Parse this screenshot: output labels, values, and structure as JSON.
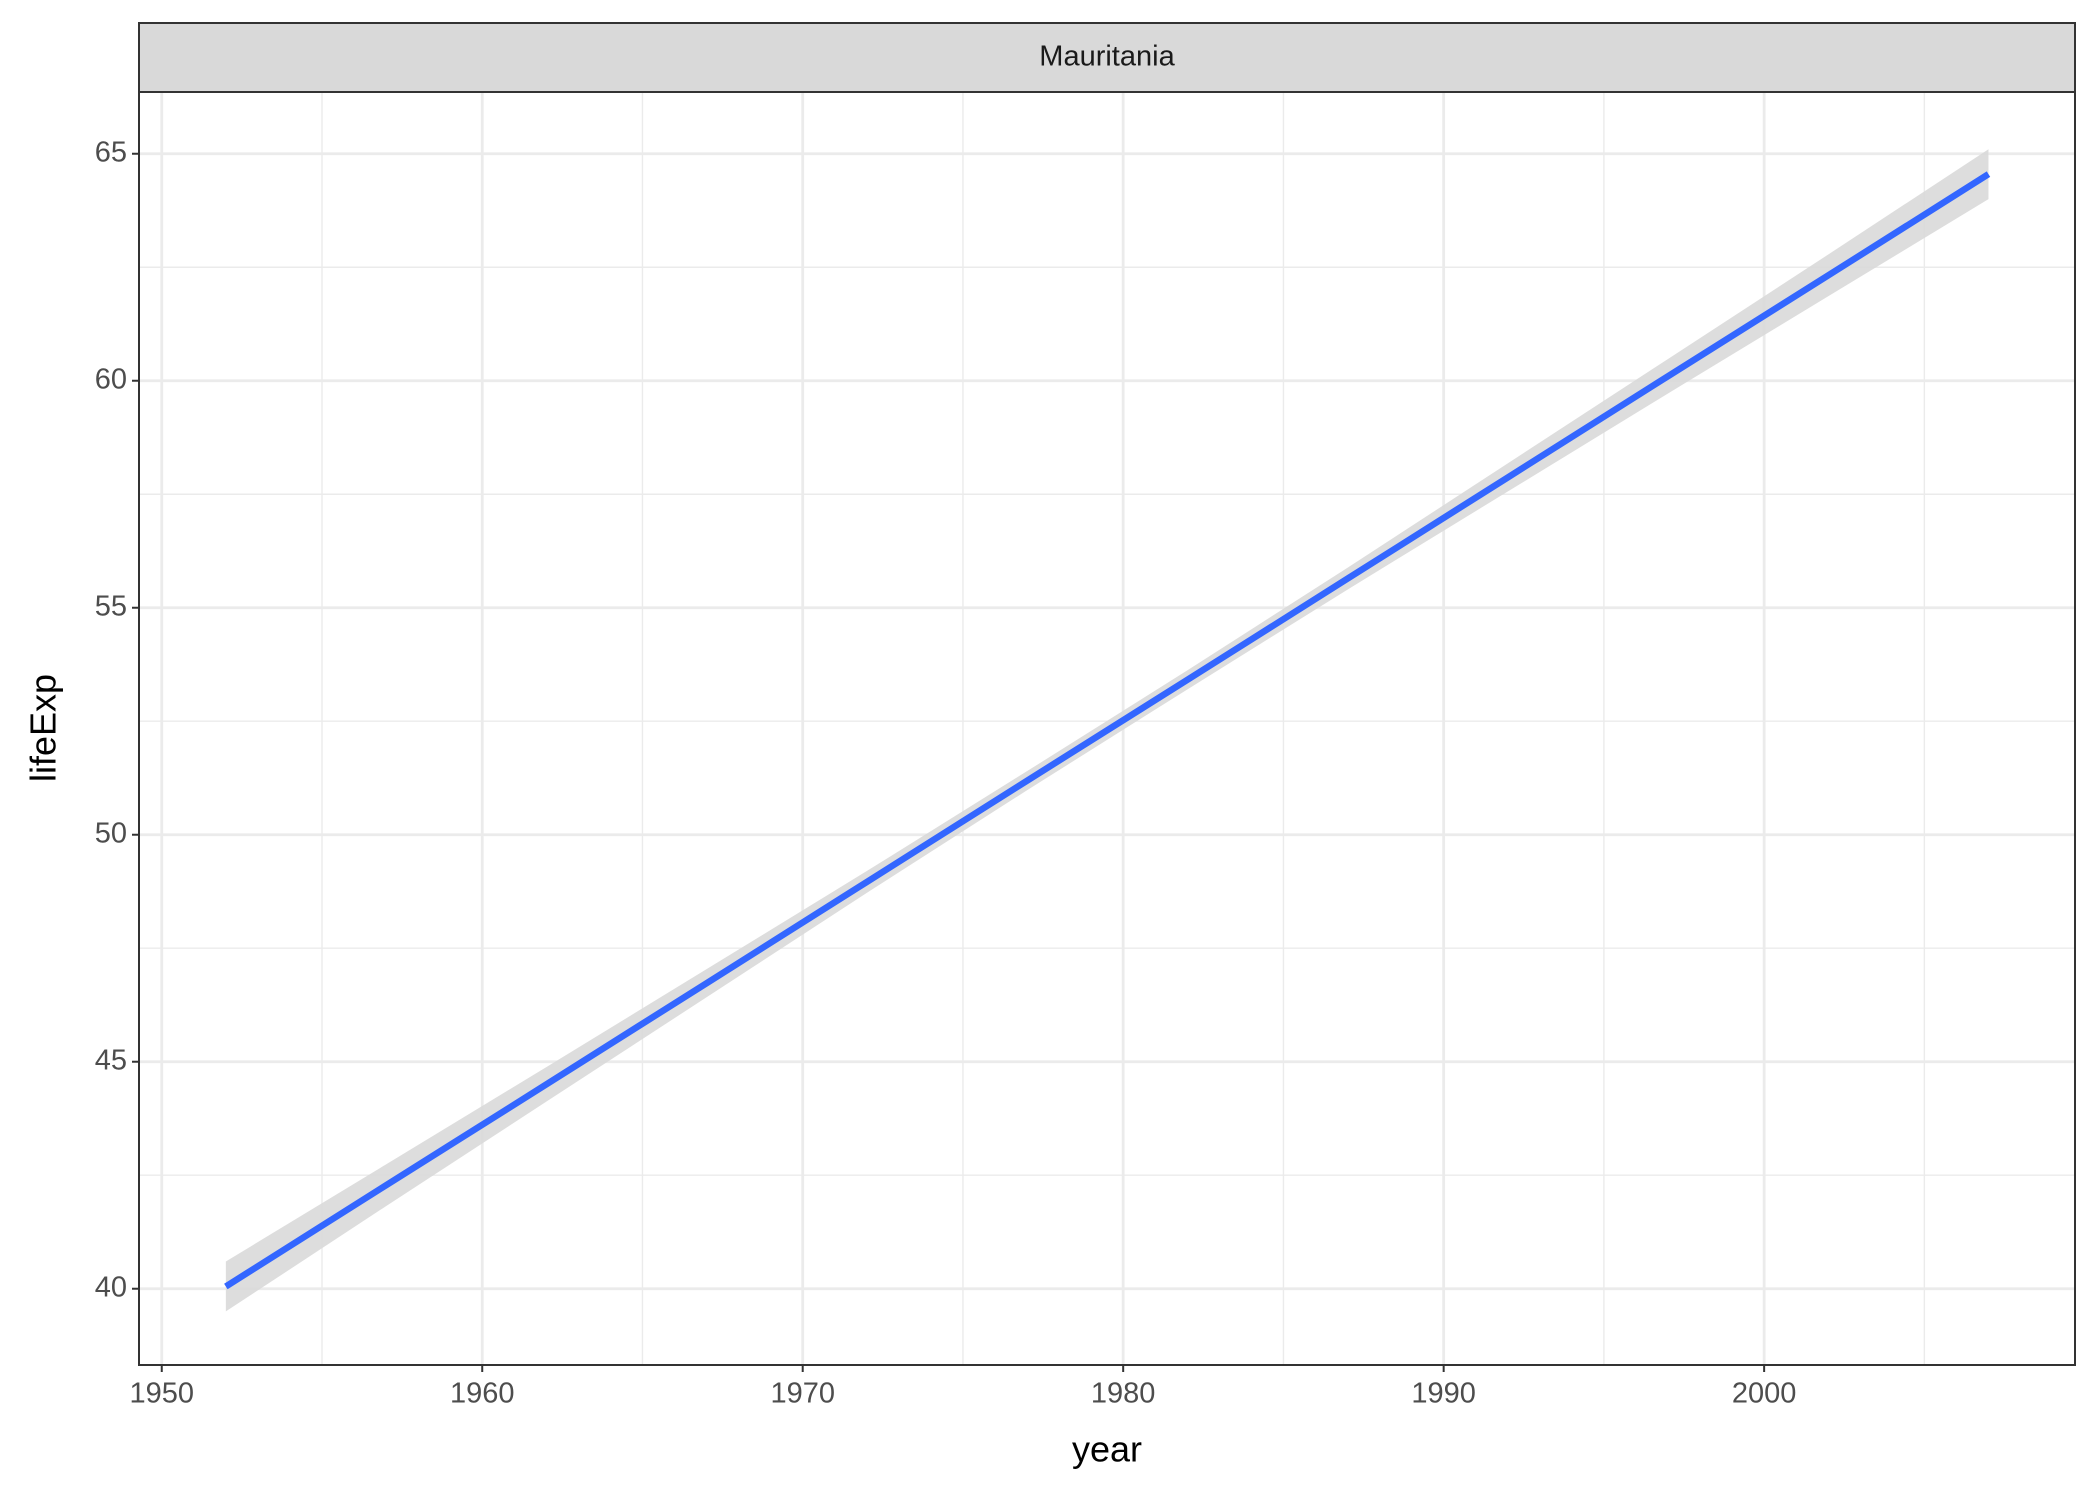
{
  "chart_data": {
    "type": "line",
    "facet": "Mauritania",
    "xlabel": "year",
    "ylabel": "lifeExp",
    "x": [
      1952,
      1957,
      1962,
      1967,
      1972,
      1977,
      1982,
      1987,
      1992,
      1997,
      2002,
      2007
    ],
    "series": [
      {
        "color": "#3366ff",
        "ribbon_color": "#d9d9d9",
        "values": [
          40.05,
          42.28,
          44.5,
          46.73,
          48.96,
          51.19,
          53.41,
          55.64,
          57.87,
          60.1,
          62.32,
          64.55
        ],
        "lower": [
          39.5,
          41.82,
          44.12,
          46.42,
          48.72,
          50.98,
          53.2,
          55.4,
          57.56,
          59.72,
          61.86,
          64.0
        ],
        "upper": [
          40.6,
          42.74,
          44.88,
          47.04,
          49.2,
          51.4,
          53.62,
          55.88,
          58.18,
          60.48,
          62.78,
          65.1
        ]
      }
    ],
    "xlim": [
      1949.29,
      2009.7
    ],
    "xticks": [
      1950,
      1960,
      1970,
      1980,
      1990,
      2000
    ],
    "minor_xticks": [
      1955,
      1965,
      1975,
      1985,
      1995,
      2005
    ],
    "ylim": [
      38.32,
      66.36
    ],
    "yticks": [
      40,
      45,
      50,
      55,
      60,
      65
    ],
    "minor_yticks": [
      42.5,
      47.5,
      52.5,
      57.5,
      62.5
    ],
    "grid": true
  }
}
